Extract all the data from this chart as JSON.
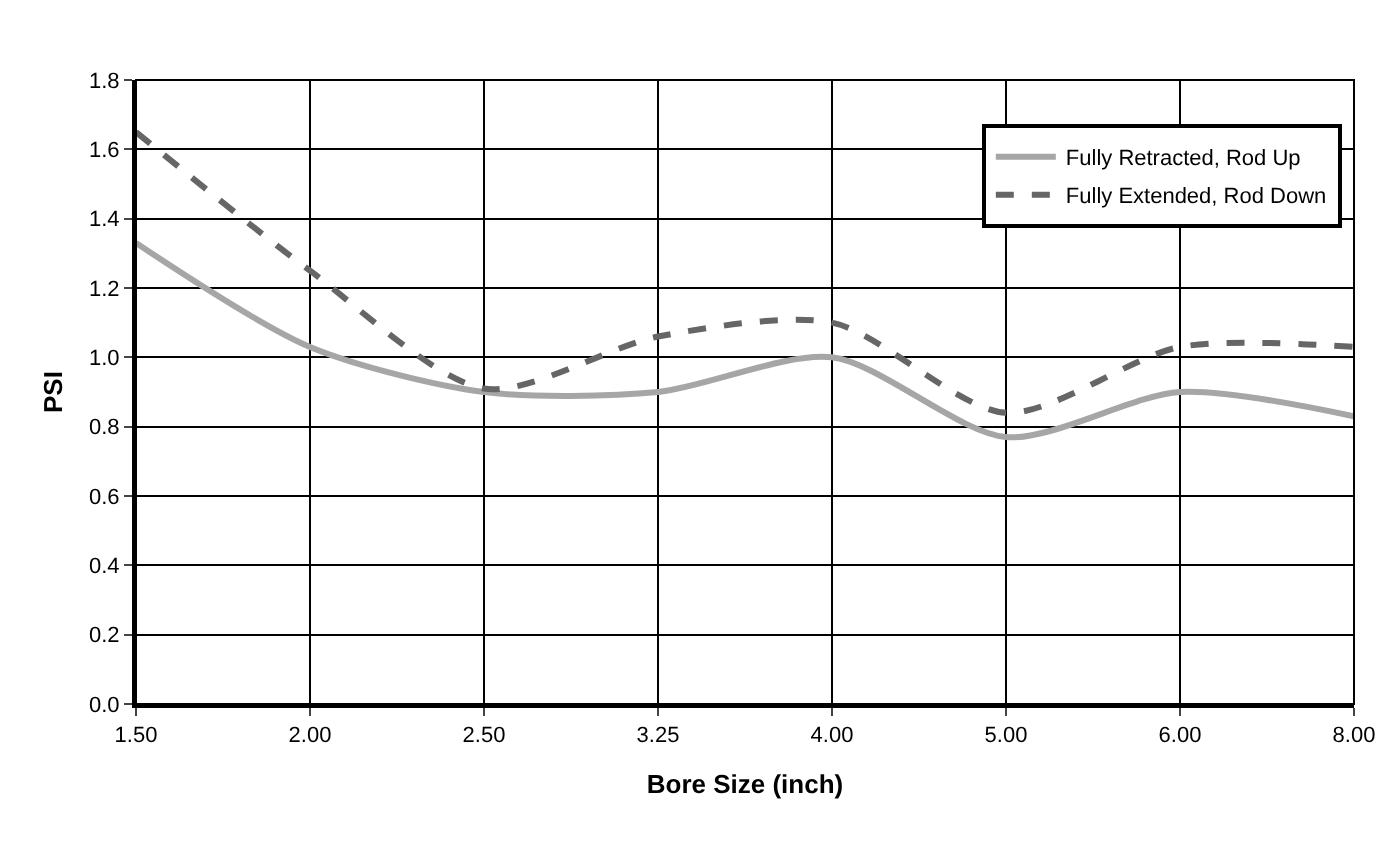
{
  "chart_data": {
    "type": "line",
    "xlabel": "Bore Size (inch)",
    "ylabel": "PSI",
    "categories": [
      "1.50",
      "2.00",
      "2.50",
      "3.25",
      "4.00",
      "5.00",
      "6.00",
      "8.00"
    ],
    "series": [
      {
        "name": "Fully Retracted, Rod Up",
        "color": "#a6a6a6",
        "line_style": "solid",
        "values": [
          1.33,
          1.03,
          0.9,
          0.9,
          1.0,
          0.77,
          0.9,
          0.83
        ]
      },
      {
        "name": "Fully Extended, Rod Down",
        "color": "#666666",
        "line_style": "dashed",
        "values": [
          1.65,
          1.25,
          0.91,
          1.06,
          1.1,
          0.84,
          1.03,
          1.03
        ]
      }
    ],
    "ylim": [
      0,
      1.8
    ],
    "yticks": [
      {
        "value": 0,
        "label": "0.0"
      },
      0.2,
      0.4,
      0.6,
      0.8,
      {
        "value": 1,
        "label": "1.0"
      },
      1.2,
      1.4,
      1.6,
      1.8
    ],
    "grid": true,
    "legend": "top right",
    "marker": "none"
  }
}
